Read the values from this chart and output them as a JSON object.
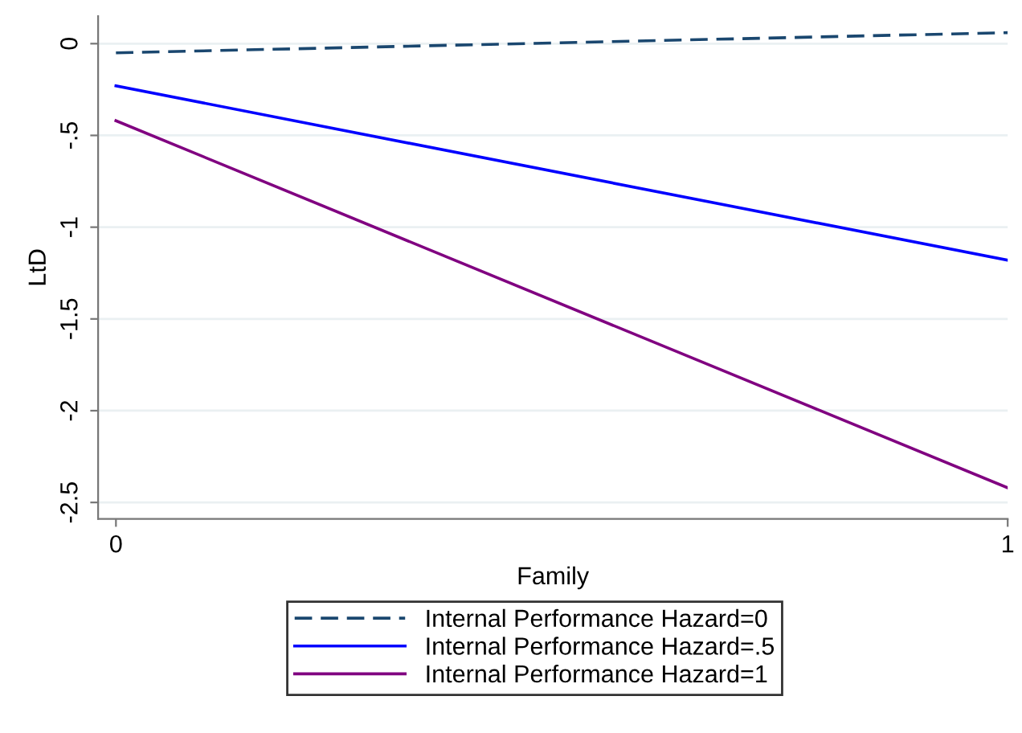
{
  "chart_data": {
    "type": "line",
    "xlabel": "Family",
    "ylabel": "LtD",
    "x": [
      0,
      1
    ],
    "series": [
      {
        "name": "Internal Performance Hazard=0",
        "color": "#1a476f",
        "values": [
          -0.05,
          0.06
        ],
        "line_style": "dashed"
      },
      {
        "name": "Internal Performance Hazard=.5",
        "color": "#0000ff",
        "values": [
          -0.23,
          -1.18
        ],
        "line_style": "solid"
      },
      {
        "name": "Internal Performance Hazard=1",
        "color": "#800080",
        "values": [
          -0.42,
          -2.42
        ],
        "line_style": "solid"
      }
    ],
    "xlim": [
      -0.02,
      1.0
    ],
    "xticks": [
      0,
      1
    ],
    "ylim": [
      -2.59,
      0.15
    ],
    "yticks": [
      0,
      {
        "value": -0.5,
        "label": "-.5"
      },
      -1,
      {
        "value": -1.5,
        "label": "-1.5"
      },
      -2,
      {
        "value": -2.5,
        "label": "-2.5"
      }
    ],
    "grid": "y",
    "legend": "bottom"
  }
}
